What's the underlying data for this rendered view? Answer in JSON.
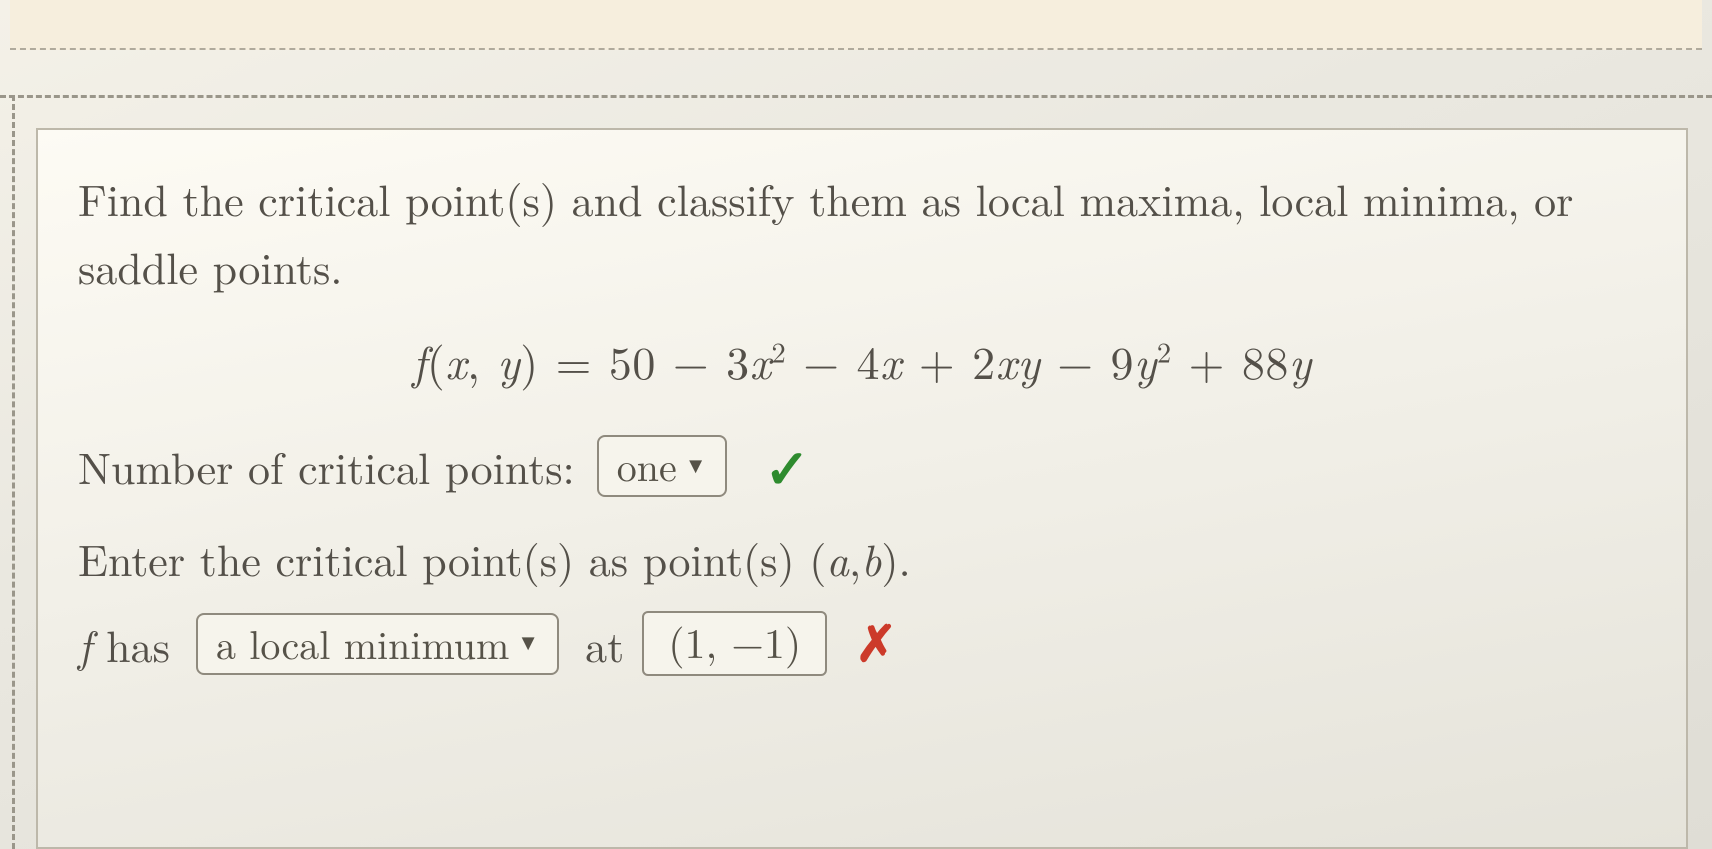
{
  "question": {
    "prompt": "Find the critical point(s) and classify them as local maxima, local minima, or saddle points.",
    "formula_html": "<span class='italic'>f</span><span class='rm'>(</span><span class='italic'>x</span><span class='rm'>,</span> <span class='italic'>y</span><span class='rm'>)</span> <span class='rm'>=</span> <span class='rm'>50</span> <span class='rm'>−</span> <span class='rm'>3</span><span class='italic'>x</span><sup>2</sup> <span class='rm'>−</span> <span class='rm'>4</span><span class='italic'>x</span> <span class='rm'>+</span> <span class='rm'>2</span><span class='italic'>xy</span> <span class='rm'>−</span> <span class='rm'>9</span><span class='italic'>y</span><sup>2</sup> <span class='rm'>+</span> <span class='rm'>88</span><span class='italic'>y</span>",
    "rows": {
      "num_points": {
        "label": "Number of critical points:",
        "select_value": "one",
        "grading": "correct"
      },
      "enter_prompt_html": "Enter the critical point(s) as point(s) (<span class='italic'>a</span>, <span class='italic'>b</span>).",
      "answer": {
        "prefix_html": "<span class='italic'>f</span> has",
        "classification_value": "a local minimum",
        "at_label": "at",
        "point_value": "(1, −1)",
        "grading": "incorrect"
      }
    }
  },
  "icons": {
    "check": "✓",
    "cross": "✗",
    "caret": "▼"
  },
  "colors": {
    "correct": "#2e8b2e",
    "incorrect": "#cc3a2a",
    "border": "#8f8a7e",
    "text": "#545049",
    "box_bg": "#f6f4ec",
    "page_bg_top": "#f4f1e8",
    "page_bg_bottom": "#dfddd5"
  }
}
